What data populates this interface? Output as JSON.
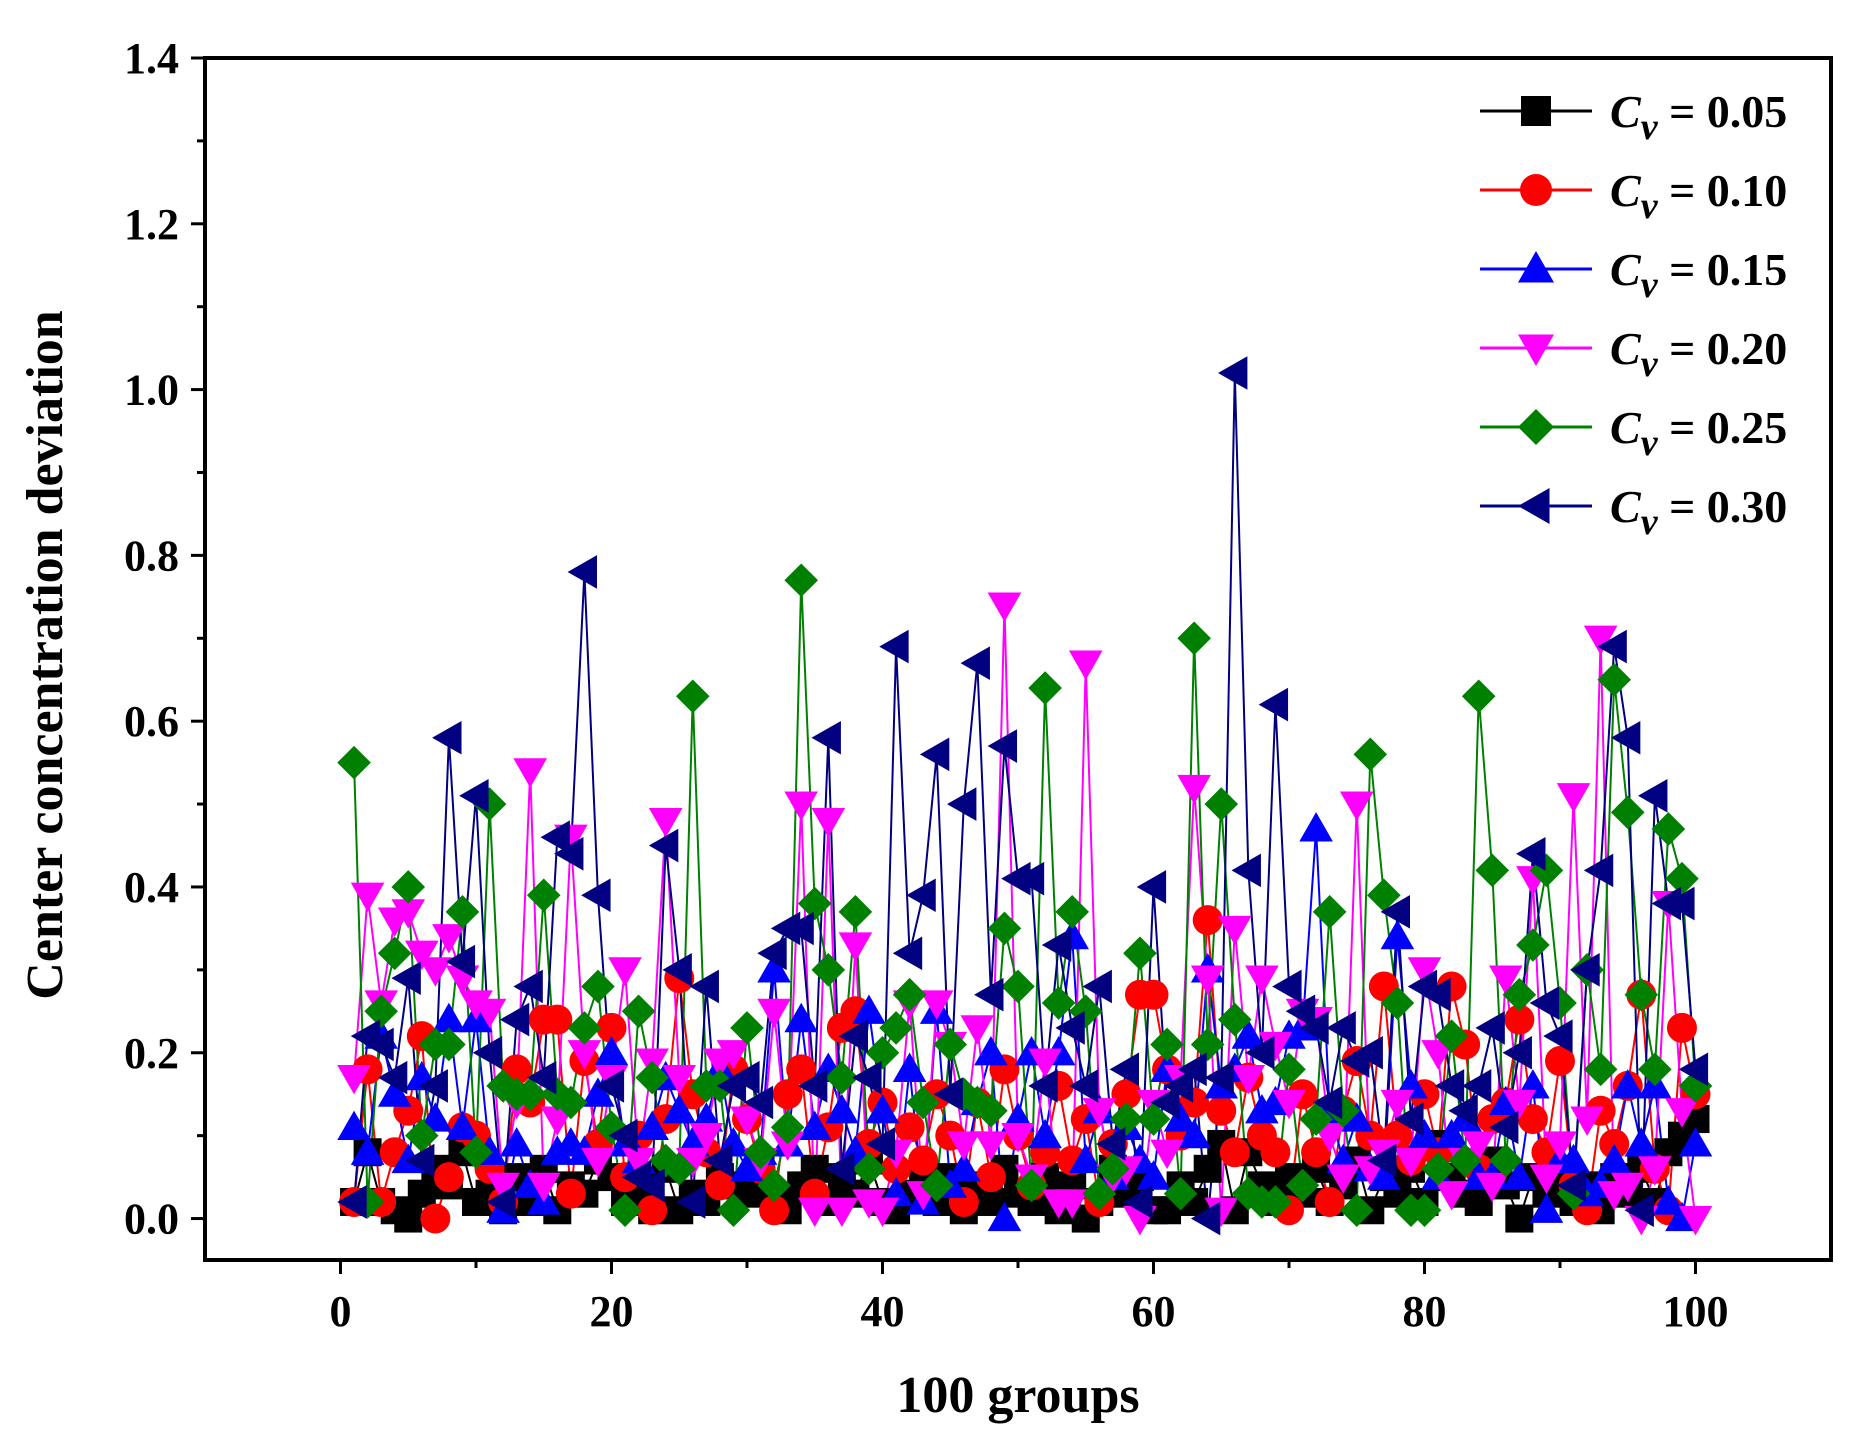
{
  "chart_data": {
    "type": "line",
    "title": "",
    "xlabel": "100 groups",
    "ylabel": "Center concentration deviation",
    "xlim": [
      -10,
      110
    ],
    "ylim": [
      -0.05,
      1.4
    ],
    "xticks": [
      "0",
      "20",
      "40",
      "60",
      "80",
      "100"
    ],
    "yticks": [
      "0.0",
      "0.2",
      "0.4",
      "0.6",
      "0.8",
      "1.0",
      "1.2",
      "1.4"
    ],
    "x": [
      1,
      2,
      3,
      4,
      5,
      6,
      7,
      8,
      9,
      10,
      11,
      12,
      13,
      14,
      15,
      16,
      17,
      18,
      19,
      20,
      21,
      22,
      23,
      24,
      25,
      26,
      27,
      28,
      29,
      30,
      31,
      32,
      33,
      34,
      35,
      36,
      37,
      38,
      39,
      40,
      41,
      42,
      43,
      44,
      45,
      46,
      47,
      48,
      49,
      50,
      51,
      52,
      53,
      54,
      55,
      56,
      57,
      58,
      59,
      60,
      61,
      62,
      63,
      64,
      65,
      66,
      67,
      68,
      69,
      70,
      71,
      72,
      73,
      74,
      75,
      76,
      77,
      78,
      79,
      80,
      81,
      82,
      83,
      84,
      85,
      86,
      87,
      88,
      89,
      90,
      91,
      92,
      93,
      94,
      95,
      96,
      97,
      98,
      99,
      100
    ],
    "legend_position": "top-right",
    "series": [
      {
        "name": "Cv = 0.05",
        "legend_prefix": "C",
        "legend_sub": "v",
        "legend_value": " = 0.05",
        "color": "#000000",
        "marker": "square",
        "values": [
          0.02,
          0.08,
          0.02,
          0.01,
          0.0,
          0.03,
          0.06,
          0.04,
          0.08,
          0.02,
          0.03,
          0.01,
          0.05,
          0.02,
          0.06,
          0.01,
          0.04,
          0.03,
          0.07,
          0.05,
          0.02,
          0.04,
          0.01,
          0.06,
          0.01,
          0.03,
          0.02,
          0.05,
          0.04,
          0.03,
          0.06,
          0.02,
          0.01,
          0.04,
          0.06,
          0.02,
          0.05,
          0.03,
          0.07,
          0.02,
          0.01,
          0.03,
          0.06,
          0.02,
          0.05,
          0.01,
          0.04,
          0.02,
          0.06,
          0.03,
          0.02,
          0.05,
          0.01,
          0.04,
          0.0,
          0.02,
          0.06,
          0.03,
          0.05,
          0.01,
          0.01,
          0.04,
          0.02,
          0.06,
          0.09,
          0.01,
          0.08,
          0.04,
          0.02,
          0.05,
          0.03,
          0.06,
          0.02,
          0.04,
          0.07,
          0.01,
          0.05,
          0.03,
          0.06,
          0.02,
          0.09,
          0.05,
          0.03,
          0.02,
          0.07,
          0.04,
          0.0,
          0.05,
          0.03,
          0.06,
          0.02,
          0.04,
          0.01,
          0.05,
          0.03,
          0.06,
          0.02,
          0.08,
          0.1,
          0.12
        ]
      },
      {
        "name": "Cv = 0.10",
        "legend_prefix": "C",
        "legend_sub": "v",
        "legend_value": " = 0.10",
        "color": "#ff0000",
        "marker": "circle",
        "values": [
          0.02,
          0.18,
          0.02,
          0.08,
          0.13,
          0.22,
          0.0,
          0.05,
          0.11,
          0.1,
          0.06,
          0.02,
          0.18,
          0.14,
          0.24,
          0.24,
          0.03,
          0.19,
          0.09,
          0.23,
          0.05,
          0.1,
          0.01,
          0.12,
          0.29,
          0.15,
          0.08,
          0.04,
          0.18,
          0.12,
          0.06,
          0.01,
          0.15,
          0.18,
          0.03,
          0.11,
          0.23,
          0.25,
          0.09,
          0.14,
          0.06,
          0.11,
          0.07,
          0.15,
          0.1,
          0.02,
          0.14,
          0.05,
          0.18,
          0.1,
          0.04,
          0.08,
          0.16,
          0.07,
          0.12,
          0.02,
          0.09,
          0.15,
          0.27,
          0.27,
          0.18,
          0.1,
          0.14,
          0.36,
          0.13,
          0.08,
          0.17,
          0.1,
          0.08,
          0.01,
          0.15,
          0.08,
          0.02,
          0.13,
          0.19,
          0.1,
          0.28,
          0.1,
          0.07,
          0.15,
          0.08,
          0.28,
          0.21,
          0.06,
          0.12,
          0.14,
          0.24,
          0.12,
          0.08,
          0.19,
          0.04,
          0.01,
          0.13,
          0.09,
          0.16,
          0.27,
          0.06,
          0.01,
          0.23,
          0.15
        ]
      },
      {
        "name": "Cv = 0.15",
        "legend_prefix": "C",
        "legend_sub": "v",
        "legend_value": " = 0.15",
        "color": "#0000ff",
        "marker": "triangle-up",
        "values": [
          0.11,
          0.08,
          0.22,
          0.15,
          0.07,
          0.17,
          0.12,
          0.24,
          0.11,
          0.24,
          0.08,
          0.01,
          0.09,
          0.04,
          0.02,
          0.08,
          0.09,
          0.08,
          0.15,
          0.2,
          0.09,
          0.07,
          0.11,
          0.17,
          0.13,
          0.09,
          0.12,
          0.18,
          0.09,
          0.06,
          0.08,
          0.3,
          0.09,
          0.24,
          0.11,
          0.18,
          0.13,
          0.08,
          0.25,
          0.13,
          0.03,
          0.18,
          0.02,
          0.25,
          0.04,
          0.06,
          0.14,
          0.2,
          0.0,
          0.12,
          0.2,
          0.1,
          0.2,
          0.34,
          0.07,
          0.13,
          0.05,
          0.11,
          0.07,
          0.05,
          0.18,
          0.12,
          0.1,
          0.3,
          0.16,
          0.18,
          0.22,
          0.13,
          0.14,
          0.22,
          0.23,
          0.47,
          0.13,
          0.07,
          0.12,
          0.06,
          0.05,
          0.34,
          0.16,
          0.1,
          0.05,
          0.1,
          0.12,
          0.05,
          0.05,
          0.14,
          0.05,
          0.16,
          0.01,
          0.07,
          0.07,
          0.03,
          0.04,
          0.07,
          0.16,
          0.09,
          0.16,
          0.02,
          0.0,
          0.09
        ]
      },
      {
        "name": "Cv = 0.20",
        "legend_prefix": "C",
        "legend_sub": "v",
        "legend_value": " = 0.20",
        "color": "#ff00ff",
        "marker": "triangle-down",
        "values": [
          0.17,
          0.39,
          0.26,
          0.36,
          0.37,
          0.32,
          0.3,
          0.34,
          0.29,
          0.26,
          0.25,
          0.04,
          0.14,
          0.54,
          0.04,
          0.12,
          0.46,
          0.2,
          0.07,
          0.17,
          0.3,
          0.07,
          0.19,
          0.48,
          0.17,
          0.07,
          0.1,
          0.19,
          0.2,
          0.12,
          0.07,
          0.25,
          0.09,
          0.5,
          0.01,
          0.48,
          0.01,
          0.33,
          0.02,
          0.01,
          0.08,
          0.26,
          0.03,
          0.26,
          0.21,
          0.09,
          0.23,
          0.09,
          0.74,
          0.1,
          0.05,
          0.19,
          0.02,
          0.02,
          0.67,
          0.13,
          0.05,
          0.06,
          0.0,
          0.14,
          0.08,
          0.17,
          0.52,
          0.29,
          0.01,
          0.35,
          0.17,
          0.29,
          0.21,
          0.14,
          0.25,
          0.24,
          0.1,
          0.05,
          0.5,
          0.06,
          0.08,
          0.14,
          0.07,
          0.3,
          0.2,
          0.03,
          0.07,
          0.09,
          0.04,
          0.29,
          0.14,
          0.41,
          0.05,
          0.09,
          0.51,
          0.12,
          0.7,
          0.03,
          0.04,
          0.0,
          0.06,
          0.38,
          0.13,
          0.0
        ]
      },
      {
        "name": "Cv = 0.25",
        "legend_prefix": "C",
        "legend_sub": "v",
        "legend_value": " = 0.25",
        "color": "#008000",
        "marker": "diamond",
        "values": [
          0.55,
          0.02,
          0.25,
          0.32,
          0.4,
          0.1,
          0.21,
          0.21,
          0.37,
          0.08,
          0.5,
          0.16,
          0.15,
          0.15,
          0.39,
          0.15,
          0.14,
          0.23,
          0.28,
          0.11,
          0.01,
          0.25,
          0.17,
          0.07,
          0.06,
          0.63,
          0.16,
          0.16,
          0.01,
          0.23,
          0.08,
          0.04,
          0.11,
          0.77,
          0.38,
          0.3,
          0.17,
          0.37,
          0.06,
          0.2,
          0.23,
          0.27,
          0.14,
          0.04,
          0.21,
          0.15,
          0.14,
          0.13,
          0.35,
          0.28,
          0.04,
          0.64,
          0.26,
          0.37,
          0.25,
          0.03,
          0.06,
          0.12,
          0.32,
          0.12,
          0.21,
          0.03,
          0.7,
          0.21,
          0.5,
          0.24,
          0.03,
          0.02,
          0.02,
          0.18,
          0.04,
          0.12,
          0.37,
          0.13,
          0.01,
          0.56,
          0.39,
          0.26,
          0.01,
          0.01,
          0.06,
          0.22,
          0.07,
          0.63,
          0.42,
          0.07,
          0.27,
          0.33,
          0.42,
          0.26,
          0.03,
          0.3,
          0.18,
          0.65,
          0.49,
          0.27,
          0.18,
          0.47,
          0.41,
          0.16
        ]
      },
      {
        "name": "Cv = 0.30",
        "legend_prefix": "C",
        "legend_sub": "v",
        "legend_value": " = 0.30",
        "color": "#000080",
        "marker": "triangle-left",
        "values": [
          0.02,
          0.22,
          0.21,
          0.17,
          0.29,
          0.07,
          0.16,
          0.58,
          0.31,
          0.51,
          0.2,
          0.02,
          0.24,
          0.28,
          0.17,
          0.46,
          0.44,
          0.78,
          0.39,
          0.16,
          0.1,
          0.05,
          0.04,
          0.45,
          0.3,
          0.02,
          0.28,
          0.07,
          0.16,
          0.17,
          0.14,
          0.32,
          0.35,
          0.35,
          0.16,
          0.58,
          0.06,
          0.22,
          0.17,
          0.09,
          0.69,
          0.32,
          0.39,
          0.56,
          0.15,
          0.5,
          0.67,
          0.27,
          0.57,
          0.41,
          0.41,
          0.16,
          0.33,
          0.23,
          0.16,
          0.28,
          0.09,
          0.18,
          0.02,
          0.4,
          0.14,
          0.16,
          0.18,
          0.0,
          0.17,
          1.02,
          0.42,
          0.2,
          0.62,
          0.28,
          0.25,
          0.23,
          0.14,
          0.23,
          0.19,
          0.2,
          0.07,
          0.37,
          0.12,
          0.28,
          0.27,
          0.16,
          0.13,
          0.16,
          0.23,
          0.11,
          0.2,
          0.44,
          0.26,
          0.22,
          0.04,
          0.3,
          0.42,
          0.69,
          0.58,
          0.01,
          0.51,
          0.38,
          0.38,
          0.18
        ]
      }
    ]
  }
}
